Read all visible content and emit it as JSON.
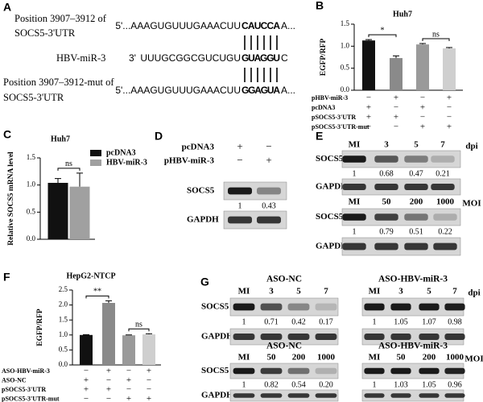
{
  "sequence_alignment": {
    "panel": "A",
    "wt_caption": [
      "Position 3907–3912 of",
      "SOCS5-3'UTR"
    ],
    "wt": {
      "prefix": "5'...AAAGUGUUUGAAACUU",
      "site": "CAUCCA",
      "suffix": "A..."
    },
    "mirna": {
      "name": "HBV-miR-3",
      "end": "3'",
      "prefix": "UUUGCGGCGUCUGU",
      "site": "GUAGGU",
      "suffix": "C"
    },
    "mut_caption": [
      "Position 3907–3912-mut of",
      "SOCS5-3'UTR"
    ],
    "mut": {
      "prefix": "5'...AAAGUGUUUGAAACUU",
      "site": "GGAGUA",
      "suffix": "A..."
    }
  },
  "chart_data": [
    {
      "type": "bar",
      "panel": "B",
      "title": "Huh7",
      "ylabel": "EGFP/RFP",
      "ylim": [
        0,
        1.5
      ],
      "yticks": [
        {
          "value": 0,
          "label": "0.0"
        },
        {
          "value": 0.5,
          "label": "0.5"
        },
        {
          "value": 1,
          "label": "1.0"
        },
        {
          "value": 1.5,
          "label": "1.5"
        }
      ],
      "values": [
        1.13,
        0.73,
        1.04,
        0.95
      ],
      "errors": [
        0.02,
        0.05,
        0.02,
        0.02
      ],
      "colors": [
        "#111111",
        "#8a8a8a",
        "#9a9a9a",
        "#cfcfcf"
      ],
      "annotations": [
        "*",
        "ns"
      ],
      "conditions": [
        {
          "name": "pHBV-miR-3",
          "signs": [
            "−",
            "+",
            "−",
            "+"
          ]
        },
        {
          "name": "pcDNA3",
          "signs": [
            "+",
            "−",
            "+",
            "−"
          ]
        },
        {
          "name": "pSOCS5-3'UTR",
          "signs": [
            "+",
            "+",
            "−",
            "−"
          ]
        },
        {
          "name": "pSOCS5-3'UTR-mut",
          "signs": [
            "−",
            "−",
            "+",
            "+"
          ]
        }
      ]
    },
    {
      "type": "bar",
      "panel": "C",
      "title": "Huh7",
      "ylabel": "Relative SOCS5 mRNA level",
      "ylim": [
        0,
        1.5
      ],
      "yticks": [
        {
          "value": 0,
          "label": "0.0"
        },
        {
          "value": 0.5,
          "label": "0.5"
        },
        {
          "value": 1,
          "label": "1.0"
        },
        {
          "value": 1.5,
          "label": "1.5"
        }
      ],
      "series": [
        {
          "name": "pcDNA3",
          "color": "#111111",
          "values": [
            1.04
          ],
          "errors": [
            0.08
          ]
        },
        {
          "name": "HBV-miR-3",
          "color": "#a0a0a0",
          "values": [
            0.97
          ],
          "errors": [
            0.25
          ]
        }
      ],
      "annotations": [
        "ns"
      ]
    },
    {
      "type": "bar",
      "panel": "F",
      "title": "HepG2-NTCP",
      "ylabel": "EGFP/RFP",
      "ylim": [
        0,
        2.5
      ],
      "yticks": [
        {
          "value": 0,
          "label": "0.0"
        },
        {
          "value": 0.5,
          "label": "0.5"
        },
        {
          "value": 1,
          "label": "1.0"
        },
        {
          "value": 1.5,
          "label": "1.5"
        },
        {
          "value": 2,
          "label": "2.0"
        },
        {
          "value": 2.5,
          "label": "2.5"
        }
      ],
      "values": [
        1.0,
        2.07,
        0.99,
        1.02
      ],
      "errors": [
        0.01,
        0.07,
        0.01,
        0.02
      ],
      "colors": [
        "#111111",
        "#8a8a8a",
        "#9a9a9a",
        "#cfcfcf"
      ],
      "annotations": [
        "**",
        "ns"
      ],
      "conditions": [
        {
          "name": "ASO-HBV-miR-3",
          "signs": [
            "−",
            "+",
            "−",
            "+"
          ]
        },
        {
          "name": "ASO-NC",
          "signs": [
            "+",
            "−",
            "+",
            "−"
          ]
        },
        {
          "name": "pSOCS5-3'UTR",
          "signs": [
            "+",
            "+",
            "−",
            "−"
          ]
        },
        {
          "name": "pSOCS5-3'UTR-mut",
          "signs": [
            "−",
            "−",
            "+",
            "+"
          ]
        }
      ]
    }
  ],
  "blot_d": {
    "panel": "D",
    "conditions": [
      {
        "name": "pcDNA3",
        "signs": [
          "+",
          "−"
        ]
      },
      {
        "name": "pHBV-miR-3",
        "signs": [
          "−",
          "+"
        ]
      }
    ],
    "group": {
      "rows": [
        "SOCS5",
        "GAPDH"
      ],
      "quant": [
        "1",
        "0.43"
      ]
    }
  },
  "blot_e": {
    "panel": "E",
    "groups": [
      {
        "lanes": [
          "MI",
          "3",
          "5",
          "7"
        ],
        "unit": "dpi",
        "rows": [
          "SOCS5",
          "GAPDH"
        ],
        "quant": [
          "1",
          "0.68",
          "0.47",
          "0.21"
        ]
      },
      {
        "lanes": [
          "MI",
          "50",
          "200",
          "1000"
        ],
        "unit": "MOI",
        "rows": [
          "SOCS5",
          "GAPDH"
        ],
        "quant": [
          "1",
          "0.79",
          "0.51",
          "0.22"
        ]
      }
    ]
  },
  "blot_g": {
    "panel": "G",
    "groups": [
      {
        "title": "ASO-NC",
        "lanes": [
          "MI",
          "3",
          "5",
          "7"
        ],
        "rows": [
          "SOCS5",
          "GAPDH"
        ],
        "quant": [
          "1",
          "0.71",
          "0.42",
          "0.17"
        ]
      },
      {
        "title": "ASO-HBV-miR-3",
        "lanes": [
          "MI",
          "3",
          "5",
          "7"
        ],
        "unit": "dpi",
        "quant": [
          "1",
          "1.05",
          "1.07",
          "0.98"
        ]
      },
      {
        "title": "ASO-NC",
        "lanes": [
          "MI",
          "50",
          "200",
          "1000"
        ],
        "rows": [
          "SOCS5",
          "GAPDH"
        ],
        "quant": [
          "1",
          "0.82",
          "0.54",
          "0.20"
        ]
      },
      {
        "title": "ASO-HBV-miR-3",
        "lanes": [
          "MI",
          "50",
          "200",
          "1000"
        ],
        "unit": "MOI",
        "quant": [
          "1",
          "1.03",
          "1.05",
          "0.96"
        ]
      }
    ]
  }
}
